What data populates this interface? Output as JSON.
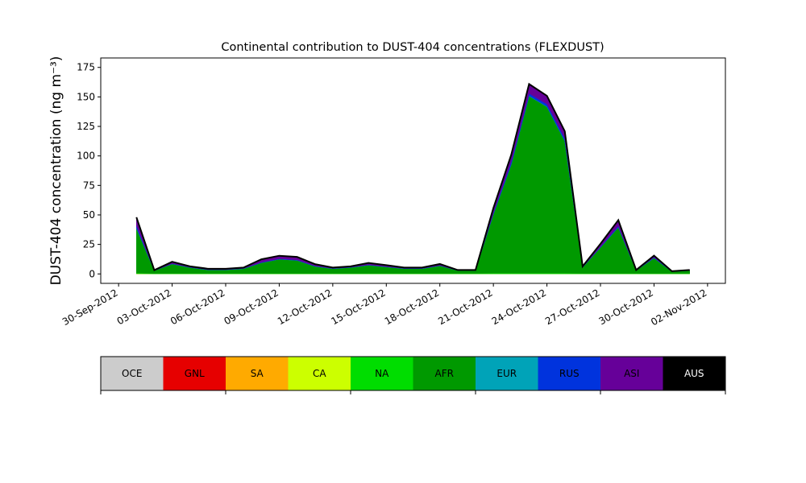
{
  "chart_data": {
    "type": "stacked_area",
    "title": "Continental contribution to DUST-404 concentrations (FLEXDUST)",
    "y_label": "DUST-404 concentration (ng m⁻³)",
    "x": [
      "2012-10-01",
      "2012-10-02",
      "2012-10-03",
      "2012-10-04",
      "2012-10-05",
      "2012-10-06",
      "2012-10-07",
      "2012-10-08",
      "2012-10-09",
      "2012-10-10",
      "2012-10-11",
      "2012-10-12",
      "2012-10-13",
      "2012-10-14",
      "2012-10-15",
      "2012-10-16",
      "2012-10-17",
      "2012-10-18",
      "2012-10-19",
      "2012-10-20",
      "2012-10-21",
      "2012-10-22",
      "2012-10-23",
      "2012-10-24",
      "2012-10-25",
      "2012-10-26",
      "2012-10-27",
      "2012-10-28",
      "2012-10-29",
      "2012-10-30",
      "2012-10-31",
      "2012-11-01"
    ],
    "xlim": [
      "2012-09-29",
      "2012-11-03"
    ],
    "xticks": [
      {
        "value": "2012-09-30",
        "label": "30-Sep-2012"
      },
      {
        "value": "2012-10-03",
        "label": "03-Oct-2012"
      },
      {
        "value": "2012-10-06",
        "label": "06-Oct-2012"
      },
      {
        "value": "2012-10-09",
        "label": "09-Oct-2012"
      },
      {
        "value": "2012-10-12",
        "label": "12-Oct-2012"
      },
      {
        "value": "2012-10-15",
        "label": "15-Oct-2012"
      },
      {
        "value": "2012-10-18",
        "label": "18-Oct-2012"
      },
      {
        "value": "2012-10-21",
        "label": "21-Oct-2012"
      },
      {
        "value": "2012-10-24",
        "label": "24-Oct-2012"
      },
      {
        "value": "2012-10-27",
        "label": "27-Oct-2012"
      },
      {
        "value": "2012-10-30",
        "label": "30-Oct-2012"
      },
      {
        "value": "2012-11-02",
        "label": "02-Nov-2012"
      }
    ],
    "ylim": [
      -8,
      183
    ],
    "yticks": [
      0,
      25,
      50,
      75,
      100,
      125,
      150,
      175
    ],
    "series": [
      {
        "name": "OCE",
        "color": "#cccccc",
        "values": [
          0,
          0,
          0,
          0,
          0,
          0,
          0,
          0,
          0,
          0,
          0,
          0,
          0,
          0,
          0,
          0,
          0,
          0,
          0,
          0,
          0,
          0,
          0,
          0,
          0,
          0,
          0,
          0,
          0,
          0,
          0,
          0
        ]
      },
      {
        "name": "GNL",
        "color": "#e60000",
        "values": [
          0.2,
          0.1,
          0.1,
          0.1,
          0.1,
          0.1,
          0.1,
          0.1,
          0.1,
          0.1,
          0.1,
          0.1,
          0.1,
          0.1,
          0.1,
          0.1,
          0.1,
          0.1,
          0.1,
          0.1,
          0.1,
          0.1,
          0.1,
          0.1,
          0.1,
          0.1,
          0.1,
          0.1,
          0.1,
          0.1,
          0.1,
          0.1
        ]
      },
      {
        "name": "SA",
        "color": "#ffaa00",
        "values": [
          0,
          0,
          0,
          0,
          0,
          0,
          0,
          0,
          0,
          0,
          0,
          0,
          0,
          0,
          0,
          0,
          0,
          0,
          0,
          0,
          0,
          0,
          0,
          0,
          0,
          0,
          0,
          0,
          0,
          0,
          0,
          0
        ]
      },
      {
        "name": "CA",
        "color": "#ccff00",
        "values": [
          0,
          0,
          0,
          0,
          0,
          0,
          0,
          0,
          0,
          0,
          0,
          0,
          0,
          0,
          0,
          0,
          0,
          0,
          0,
          0,
          0,
          0,
          0,
          0,
          0,
          0,
          0,
          0,
          0,
          0,
          0,
          0
        ]
      },
      {
        "name": "NA",
        "color": "#00dd00",
        "values": [
          0.5,
          0.2,
          0.3,
          0.3,
          0.3,
          0.3,
          0.3,
          0.3,
          0.3,
          0.3,
          0.3,
          0.3,
          0.3,
          0.3,
          0.3,
          0.3,
          0.3,
          0.3,
          0.3,
          0.3,
          0.5,
          0.5,
          0.5,
          0.5,
          0.5,
          0.3,
          0.3,
          0.3,
          0.3,
          0.3,
          0.3,
          0.3
        ]
      },
      {
        "name": "AFR",
        "color": "#009900",
        "values": [
          38,
          2.5,
          8,
          5,
          3,
          3,
          4,
          9,
          12,
          11,
          6,
          4,
          5,
          7,
          5.5,
          4,
          4,
          6.5,
          2.5,
          2.5,
          50,
          92,
          150,
          141,
          112,
          5,
          22,
          39,
          2.5,
          13,
          1.5,
          2.5
        ]
      },
      {
        "name": "EUR",
        "color": "#00a3b8",
        "values": [
          0.3,
          0,
          0.1,
          0.1,
          0.1,
          0.1,
          0.1,
          0.1,
          0.1,
          0.1,
          0.1,
          0.1,
          0.1,
          0.1,
          0.1,
          0.1,
          0.1,
          0.1,
          0,
          0,
          0.2,
          0.3,
          0.3,
          0.3,
          0.3,
          0.1,
          0.1,
          0.2,
          0,
          0.1,
          0,
          0
        ]
      },
      {
        "name": "RUS",
        "color": "#0033dd",
        "values": [
          2,
          0.1,
          0.3,
          0.2,
          0.2,
          0.2,
          0.2,
          0.4,
          0.4,
          0.4,
          0.3,
          0.2,
          0.2,
          0.3,
          0.2,
          0.2,
          0.2,
          0.2,
          0.1,
          0.1,
          1,
          2,
          2,
          2,
          2,
          0.2,
          0.5,
          1,
          0.1,
          0.5,
          0.1,
          0.1
        ]
      },
      {
        "name": "ASI",
        "color": "#660099",
        "values": [
          7,
          0.3,
          1.5,
          0.7,
          0.7,
          0.7,
          0.7,
          2.5,
          2.5,
          2.5,
          1.5,
          0.7,
          0.7,
          1.5,
          1.2,
          0.7,
          0.7,
          1.2,
          0.3,
          0.3,
          4,
          6,
          8,
          7,
          6,
          0.7,
          2.5,
          5,
          0.3,
          1.5,
          0.3,
          0.3
        ]
      },
      {
        "name": "AUS",
        "color": "#000000",
        "values": [
          0,
          0,
          0,
          0,
          0,
          0,
          0,
          0,
          0,
          0,
          0,
          0,
          0,
          0,
          0,
          0,
          0,
          0,
          0,
          0,
          0,
          0,
          0,
          0,
          0,
          0,
          0,
          0,
          0,
          0,
          0,
          0
        ]
      }
    ]
  }
}
